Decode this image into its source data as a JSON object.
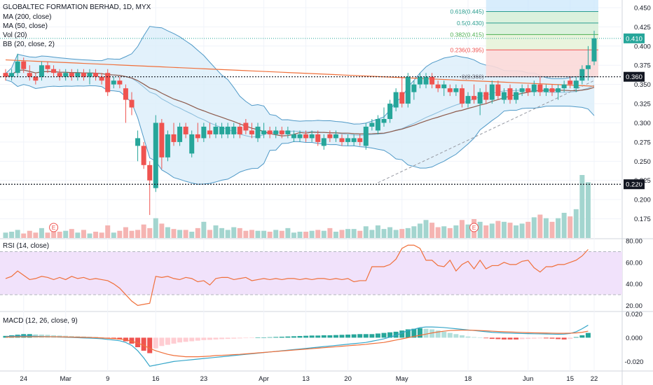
{
  "header": {
    "title": "GLOBALTEC FORMATION BERHAD, 1D, MYX",
    "indicators": [
      "MA (200, close)",
      "MA (50, close)",
      "Vol (20)",
      "BB (20, close, 2)"
    ]
  },
  "colors": {
    "up": "#26a69a",
    "down": "#ef5350",
    "up_vol": "#a3d5cf",
    "down_vol": "#f5b4b2",
    "ma200": "#f0703b",
    "ma50": "#8d5b4c",
    "bb": "#4f99c7",
    "bb_fill": "#dbeefa",
    "rsi_line": "#f0703b",
    "rsi_fill": "#f1e2fb",
    "macd_line": "#36a6c9",
    "signal_line": "#f0703b"
  },
  "chart_data": [
    {
      "type": "candlestick",
      "pane": "price",
      "ylim": [
        0.15,
        0.46
      ],
      "y_ticks": [
        "0.175",
        "0.200",
        "0.225",
        "0.250",
        "0.275",
        "0.300",
        "0.325",
        "0.350",
        "0.375",
        "0.400",
        "0.425",
        "0.450"
      ],
      "x_ticks": [
        "24",
        "Mar",
        "9",
        "16",
        "23",
        "Apr",
        "13",
        "20",
        "May",
        "18",
        "Jun",
        "15",
        "22"
      ],
      "ohlc": [
        [
          0.365,
          0.37,
          0.355,
          0.36
        ],
        [
          0.36,
          0.37,
          0.355,
          0.365
        ],
        [
          0.365,
          0.39,
          0.36,
          0.38
        ],
        [
          0.38,
          0.385,
          0.365,
          0.37
        ],
        [
          0.365,
          0.375,
          0.355,
          0.36
        ],
        [
          0.36,
          0.365,
          0.35,
          0.355
        ],
        [
          0.36,
          0.38,
          0.355,
          0.375
        ],
        [
          0.375,
          0.38,
          0.365,
          0.37
        ],
        [
          0.37,
          0.375,
          0.36,
          0.365
        ],
        [
          0.365,
          0.37,
          0.355,
          0.36
        ],
        [
          0.36,
          0.37,
          0.355,
          0.365
        ],
        [
          0.365,
          0.37,
          0.355,
          0.36
        ],
        [
          0.36,
          0.37,
          0.355,
          0.365
        ],
        [
          0.365,
          0.37,
          0.355,
          0.36
        ],
        [
          0.36,
          0.37,
          0.35,
          0.365
        ],
        [
          0.365,
          0.37,
          0.355,
          0.36
        ],
        [
          0.36,
          0.365,
          0.35,
          0.355
        ],
        [
          0.365,
          0.37,
          0.335,
          0.34
        ],
        [
          0.35,
          0.36,
          0.345,
          0.355
        ],
        [
          0.355,
          0.36,
          0.345,
          0.35
        ],
        [
          0.345,
          0.35,
          0.3,
          0.33
        ],
        [
          0.33,
          0.34,
          0.31,
          0.32
        ],
        [
          0.27,
          0.29,
          0.25,
          0.28
        ],
        [
          0.27,
          0.275,
          0.24,
          0.245
        ],
        [
          0.245,
          0.25,
          0.18,
          0.225
        ],
        [
          0.215,
          0.31,
          0.21,
          0.3
        ],
        [
          0.3,
          0.305,
          0.24,
          0.255
        ],
        [
          0.255,
          0.29,
          0.25,
          0.285
        ],
        [
          0.285,
          0.3,
          0.27,
          0.275
        ],
        [
          0.275,
          0.3,
          0.27,
          0.295
        ],
        [
          0.295,
          0.3,
          0.28,
          0.285
        ],
        [
          0.26,
          0.29,
          0.255,
          0.285
        ],
        [
          0.285,
          0.3,
          0.275,
          0.28
        ],
        [
          0.28,
          0.3,
          0.275,
          0.295
        ],
        [
          0.29,
          0.3,
          0.28,
          0.285
        ],
        [
          0.285,
          0.3,
          0.28,
          0.295
        ],
        [
          0.285,
          0.3,
          0.28,
          0.295
        ],
        [
          0.285,
          0.3,
          0.28,
          0.295
        ],
        [
          0.285,
          0.3,
          0.28,
          0.295
        ],
        [
          0.295,
          0.3,
          0.28,
          0.285
        ],
        [
          0.3,
          0.305,
          0.285,
          0.29
        ],
        [
          0.29,
          0.3,
          0.28,
          0.285
        ],
        [
          0.28,
          0.3,
          0.275,
          0.295
        ],
        [
          0.285,
          0.3,
          0.28,
          0.29
        ],
        [
          0.29,
          0.295,
          0.28,
          0.285
        ],
        [
          0.285,
          0.295,
          0.28,
          0.29
        ],
        [
          0.29,
          0.295,
          0.28,
          0.285
        ],
        [
          0.285,
          0.295,
          0.28,
          0.29
        ],
        [
          0.28,
          0.29,
          0.275,
          0.285
        ],
        [
          0.28,
          0.29,
          0.275,
          0.285
        ],
        [
          0.285,
          0.29,
          0.275,
          0.28
        ],
        [
          0.28,
          0.29,
          0.275,
          0.285
        ],
        [
          0.285,
          0.29,
          0.27,
          0.275
        ],
        [
          0.27,
          0.285,
          0.265,
          0.28
        ],
        [
          0.285,
          0.29,
          0.275,
          0.28
        ],
        [
          0.28,
          0.29,
          0.275,
          0.285
        ],
        [
          0.28,
          0.285,
          0.27,
          0.275
        ],
        [
          0.275,
          0.285,
          0.27,
          0.28
        ],
        [
          0.275,
          0.285,
          0.27,
          0.28
        ],
        [
          0.28,
          0.285,
          0.27,
          0.275
        ],
        [
          0.27,
          0.3,
          0.265,
          0.295
        ],
        [
          0.295,
          0.305,
          0.29,
          0.3
        ],
        [
          0.29,
          0.31,
          0.285,
          0.305
        ],
        [
          0.3,
          0.32,
          0.295,
          0.305
        ],
        [
          0.305,
          0.33,
          0.3,
          0.325
        ],
        [
          0.32,
          0.345,
          0.315,
          0.34
        ],
        [
          0.34,
          0.36,
          0.32,
          0.325
        ],
        [
          0.325,
          0.365,
          0.32,
          0.36
        ],
        [
          0.34,
          0.355,
          0.33,
          0.35
        ],
        [
          0.35,
          0.365,
          0.345,
          0.36
        ],
        [
          0.35,
          0.365,
          0.345,
          0.36
        ],
        [
          0.36,
          0.365,
          0.345,
          0.35
        ],
        [
          0.35,
          0.355,
          0.34,
          0.345
        ],
        [
          0.345,
          0.355,
          0.335,
          0.35
        ],
        [
          0.345,
          0.35,
          0.335,
          0.34
        ],
        [
          0.34,
          0.35,
          0.335,
          0.345
        ],
        [
          0.345,
          0.35,
          0.32,
          0.325
        ],
        [
          0.325,
          0.34,
          0.32,
          0.335
        ],
        [
          0.335,
          0.35,
          0.325,
          0.33
        ],
        [
          0.325,
          0.345,
          0.31,
          0.34
        ],
        [
          0.34,
          0.35,
          0.325,
          0.33
        ],
        [
          0.33,
          0.355,
          0.325,
          0.35
        ],
        [
          0.35,
          0.355,
          0.33,
          0.335
        ],
        [
          0.33,
          0.345,
          0.325,
          0.34
        ],
        [
          0.345,
          0.35,
          0.325,
          0.33
        ],
        [
          0.33,
          0.345,
          0.325,
          0.34
        ],
        [
          0.34,
          0.35,
          0.335,
          0.345
        ],
        [
          0.345,
          0.35,
          0.335,
          0.34
        ],
        [
          0.34,
          0.355,
          0.335,
          0.35
        ],
        [
          0.35,
          0.36,
          0.335,
          0.34
        ],
        [
          0.34,
          0.35,
          0.335,
          0.345
        ],
        [
          0.345,
          0.35,
          0.335,
          0.34
        ],
        [
          0.34,
          0.35,
          0.33,
          0.345
        ],
        [
          0.345,
          0.355,
          0.34,
          0.35
        ],
        [
          0.355,
          0.36,
          0.345,
          0.35
        ],
        [
          0.345,
          0.36,
          0.34,
          0.355
        ],
        [
          0.355,
          0.375,
          0.35,
          0.37
        ],
        [
          0.37,
          0.4,
          0.355,
          0.375
        ],
        [
          0.38,
          0.42,
          0.375,
          0.41
        ]
      ],
      "volume": [
        6,
        7,
        9,
        5,
        8,
        6,
        11,
        6,
        7,
        7,
        8,
        10,
        6,
        9,
        5,
        7,
        6,
        14,
        6,
        8,
        12,
        8,
        9,
        15,
        11,
        22,
        16,
        12,
        10,
        9,
        9,
        7,
        11,
        18,
        9,
        14,
        11,
        9,
        12,
        11,
        8,
        9,
        8,
        8,
        7,
        9,
        8,
        11,
        6,
        7,
        7,
        8,
        9,
        8,
        11,
        7,
        9,
        10,
        10,
        8,
        13,
        9,
        14,
        10,
        12,
        9,
        10,
        11,
        13,
        16,
        20,
        17,
        12,
        13,
        11,
        14,
        20,
        15,
        21,
        18,
        14,
        16,
        19,
        18,
        17,
        14,
        16,
        18,
        23,
        26,
        22,
        18,
        22,
        28,
        24,
        32,
        70,
        62
      ],
      "volume_up": [
        true,
        true,
        true,
        false,
        false,
        false,
        true,
        false,
        false,
        false,
        true,
        false,
        true,
        false,
        true,
        false,
        false,
        false,
        true,
        false,
        false,
        false,
        false,
        false,
        false,
        true,
        false,
        true,
        false,
        true,
        false,
        true,
        false,
        true,
        false,
        true,
        true,
        true,
        true,
        false,
        false,
        false,
        true,
        true,
        false,
        true,
        false,
        true,
        true,
        true,
        false,
        true,
        false,
        true,
        false,
        true,
        false,
        true,
        true,
        false,
        true,
        true,
        true,
        true,
        true,
        true,
        false,
        true,
        true,
        true,
        true,
        false,
        false,
        true,
        false,
        true,
        false,
        true,
        false,
        true,
        false,
        true,
        false,
        true,
        false,
        true,
        true,
        false,
        true,
        false,
        true,
        false,
        true,
        true,
        false,
        true,
        true,
        true
      ],
      "annotations": {
        "price_last": "0.410",
        "h_line_1": "0.360",
        "h_line_2": "0.220",
        "fib_levels": [
          "0.618(0.445)",
          "0.5(0.430)",
          "0.382(0.415)",
          "0.236(0.395)",
          "0(0.360)"
        ],
        "earnings": "E"
      }
    },
    {
      "type": "line",
      "pane": "rsi",
      "title": "RSI (14, close)",
      "ylim": [
        15,
        82
      ],
      "y_ticks": [
        "80.00",
        "60.00",
        "40.00",
        "20.00"
      ],
      "bands": [
        30,
        70
      ],
      "values": [
        45,
        47,
        52,
        48,
        44,
        45,
        47,
        46,
        44,
        46,
        44,
        47,
        45,
        46,
        44,
        45,
        44,
        43,
        40,
        36,
        30,
        24,
        20,
        21,
        22,
        47,
        46,
        47,
        45,
        44,
        46,
        45,
        42,
        43,
        39,
        45,
        46,
        46,
        44,
        45,
        46,
        43,
        44,
        45,
        44,
        45,
        44,
        45,
        45,
        44,
        45,
        44,
        45,
        45,
        44,
        45,
        44,
        45,
        42,
        43,
        43,
        56,
        56,
        56,
        58,
        63,
        73,
        76,
        76,
        73,
        62,
        62,
        57,
        56,
        62,
        52,
        58,
        61,
        54,
        62,
        54,
        57,
        57,
        60,
        58,
        58,
        61,
        62,
        55,
        51,
        56,
        56,
        58,
        58,
        60,
        62,
        66,
        72
      ]
    },
    {
      "type": "bar+line",
      "pane": "macd",
      "title": "MACD (12, 26, close, 9)",
      "ylim": [
        -0.028,
        0.022
      ],
      "y_ticks": [
        "0.020",
        "0.000",
        "-0.020"
      ],
      "histogram": [
        0.0015,
        0.002,
        0.0025,
        0.003,
        0.003,
        0.0028,
        0.0026,
        0.0024,
        0.002,
        0.0018,
        0.0016,
        0.0014,
        0.0012,
        0.001,
        0.0008,
        0.0006,
        0.0002,
        -0.0005,
        -0.001,
        -0.0015,
        -0.003,
        -0.005,
        -0.008,
        -0.011,
        -0.013,
        -0.009,
        -0.007,
        -0.006,
        -0.005,
        -0.004,
        -0.0035,
        -0.003,
        -0.0025,
        -0.002,
        -0.0018,
        -0.0015,
        -0.0012,
        -0.001,
        -0.0008,
        -0.0006,
        -0.0004,
        -0.0002,
        0,
        0.0002,
        0.0004,
        0.0006,
        0.0008,
        0.001,
        0.0012,
        0.0014,
        0.0016,
        0.0018,
        0.0018,
        0.002,
        0.002,
        0.0022,
        0.0024,
        0.0026,
        0.0028,
        0.003,
        0.003,
        0.003,
        0.0035,
        0.004,
        0.0045,
        0.005,
        0.006,
        0.007,
        0.0075,
        0.008,
        0.0075,
        0.007,
        0.006,
        0.005,
        0.004,
        0.003,
        0.002,
        0.001,
        0.0005,
        0,
        -0.0005,
        -0.001,
        -0.0012,
        -0.0015,
        -0.0015,
        -0.0015,
        -0.0012,
        -0.001,
        -0.0008,
        -0.0006,
        -0.0006,
        -0.0008,
        -0.0012,
        -0.0015,
        -0.001,
        0.0005,
        0.002,
        0.004
      ],
      "macd": [
        0.001,
        0.0012,
        0.0014,
        0.0015,
        0.0014,
        0.0012,
        0.001,
        0.0009,
        0.0008,
        0.0006,
        0.0004,
        0.0002,
        0,
        -0.0002,
        -0.0004,
        -0.0006,
        -0.0009,
        -0.0015,
        -0.002,
        -0.0026,
        -0.004,
        -0.0065,
        -0.011,
        -0.017,
        -0.024,
        -0.023,
        -0.022,
        -0.021,
        -0.02,
        -0.0195,
        -0.019,
        -0.0185,
        -0.018,
        -0.0175,
        -0.017,
        -0.0165,
        -0.016,
        -0.0155,
        -0.015,
        -0.0145,
        -0.014,
        -0.0135,
        -0.013,
        -0.0125,
        -0.012,
        -0.0115,
        -0.011,
        -0.0105,
        -0.01,
        -0.0095,
        -0.009,
        -0.0085,
        -0.008,
        -0.0075,
        -0.007,
        -0.0065,
        -0.006,
        -0.0055,
        -0.005,
        -0.0045,
        -0.004,
        -0.003,
        -0.002,
        -0.001,
        0.0005,
        0.002,
        0.004,
        0.006,
        0.007,
        0.0085,
        0.009,
        0.009,
        0.0088,
        0.0085,
        0.008,
        0.0075,
        0.007,
        0.0065,
        0.006,
        0.0055,
        0.005,
        0.0045,
        0.0042,
        0.004,
        0.0038,
        0.0036,
        0.0035,
        0.0034,
        0.0033,
        0.0032,
        0.0031,
        0.003,
        0.0029,
        0.003,
        0.0035,
        0.005,
        0.0075,
        0.0105
      ],
      "signal": [
        0.0005,
        0.0006,
        0.0007,
        0.0008,
        0.0008,
        0.0008,
        0.0008,
        0.0008,
        0.0008,
        0.0007,
        0.0006,
        0.0005,
        0.0004,
        0.0003,
        0.0002,
        0,
        -0.0002,
        -0.0005,
        -0.0008,
        -0.0012,
        -0.0018,
        -0.003,
        -0.0045,
        -0.0065,
        -0.009,
        -0.011,
        -0.0125,
        -0.014,
        -0.015,
        -0.0155,
        -0.016,
        -0.016,
        -0.016,
        -0.0158,
        -0.0155,
        -0.015,
        -0.0148,
        -0.0145,
        -0.0142,
        -0.014,
        -0.0136,
        -0.0132,
        -0.0128,
        -0.0124,
        -0.012,
        -0.0116,
        -0.0112,
        -0.0108,
        -0.0104,
        -0.01,
        -0.0096,
        -0.0092,
        -0.0088,
        -0.0084,
        -0.008,
        -0.0076,
        -0.0072,
        -0.0068,
        -0.0064,
        -0.006,
        -0.0056,
        -0.005,
        -0.0045,
        -0.004,
        -0.003,
        -0.002,
        -0.001,
        0,
        0.001,
        0.002,
        0.003,
        0.004,
        0.0048,
        0.0055,
        0.006,
        0.0062,
        0.0063,
        0.0063,
        0.0062,
        0.006,
        0.0058,
        0.0055,
        0.0052,
        0.005,
        0.0048,
        0.0046,
        0.0044,
        0.0042,
        0.0041,
        0.004,
        0.0039,
        0.0038,
        0.0037,
        0.0037,
        0.0038,
        0.004,
        0.0045,
        0.0055
      ]
    }
  ]
}
